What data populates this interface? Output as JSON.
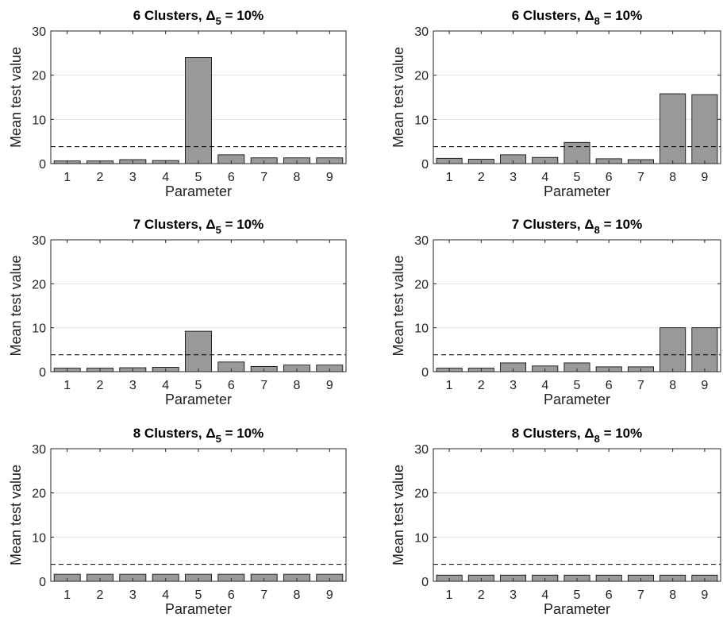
{
  "colors": {
    "bar_fill": "#999999",
    "bar_edge": "#000000",
    "threshold": "#000000",
    "grid": "#e3e3e3",
    "axis": "#262626"
  },
  "chart_data": [
    {
      "type": "bar",
      "title": "6 Clusters, Δ5 = 10%",
      "title_parts": {
        "main": "6 Clusters, Δ",
        "sub": "5",
        "tail": " = 10%"
      },
      "xlabel": "Parameter",
      "ylabel": "Mean test value",
      "categories": [
        "1",
        "2",
        "3",
        "4",
        "5",
        "6",
        "7",
        "8",
        "9"
      ],
      "values": [
        0.6,
        0.6,
        0.9,
        0.7,
        24.0,
        2.0,
        1.3,
        1.3,
        1.3
      ],
      "ylim": [
        0,
        30
      ],
      "yticks": [
        "0",
        "10",
        "20",
        "30"
      ],
      "threshold": 3.84,
      "grid": "horizontal"
    },
    {
      "type": "bar",
      "title": "6 Clusters, Δ8 = 10%",
      "title_parts": {
        "main": "6 Clusters, Δ",
        "sub": "8",
        "tail": " = 10%"
      },
      "xlabel": "Parameter",
      "ylabel": "Mean test value",
      "categories": [
        "1",
        "2",
        "3",
        "4",
        "5",
        "6",
        "7",
        "8",
        "9"
      ],
      "values": [
        1.2,
        1.0,
        2.0,
        1.4,
        4.8,
        1.1,
        0.9,
        15.8,
        15.6
      ],
      "ylim": [
        0,
        30
      ],
      "yticks": [
        "0",
        "10",
        "20",
        "30"
      ],
      "threshold": 3.84,
      "grid": "horizontal"
    },
    {
      "type": "bar",
      "title": "7 Clusters, Δ5 = 10%",
      "title_parts": {
        "main": "7 Clusters, Δ",
        "sub": "5",
        "tail": " = 10%"
      },
      "xlabel": "Parameter",
      "ylabel": "Mean test value",
      "categories": [
        "1",
        "2",
        "3",
        "4",
        "5",
        "6",
        "7",
        "8",
        "9"
      ],
      "values": [
        0.8,
        0.8,
        0.9,
        1.0,
        9.2,
        2.2,
        1.2,
        1.5,
        1.5
      ],
      "ylim": [
        0,
        30
      ],
      "yticks": [
        "0",
        "10",
        "20",
        "30"
      ],
      "threshold": 3.84,
      "grid": "horizontal"
    },
    {
      "type": "bar",
      "title": "7 Clusters, Δ8 = 10%",
      "title_parts": {
        "main": "7 Clusters, Δ",
        "sub": "8",
        "tail": " = 10%"
      },
      "xlabel": "Parameter",
      "ylabel": "Mean test value",
      "categories": [
        "1",
        "2",
        "3",
        "4",
        "5",
        "6",
        "7",
        "8",
        "9"
      ],
      "values": [
        0.8,
        0.8,
        2.0,
        1.3,
        2.0,
        1.1,
        1.1,
        10.0,
        10.0
      ],
      "ylim": [
        0,
        30
      ],
      "yticks": [
        "0",
        "10",
        "20",
        "30"
      ],
      "threshold": 3.84,
      "grid": "horizontal"
    },
    {
      "type": "bar",
      "title": "8 Clusters, Δ5 = 10%",
      "title_parts": {
        "main": "8 Clusters, Δ",
        "sub": "5",
        "tail": " = 10%"
      },
      "xlabel": "Parameter",
      "ylabel": "Mean test value",
      "categories": [
        "1",
        "2",
        "3",
        "4",
        "5",
        "6",
        "7",
        "8",
        "9"
      ],
      "values": [
        1.6,
        1.6,
        1.6,
        1.6,
        1.6,
        1.6,
        1.6,
        1.6,
        1.6
      ],
      "ylim": [
        0,
        30
      ],
      "yticks": [
        "0",
        "10",
        "20",
        "30"
      ],
      "threshold": 3.84,
      "grid": "horizontal"
    },
    {
      "type": "bar",
      "title": "8 Clusters, Δ8 = 10%",
      "title_parts": {
        "main": "8 Clusters, Δ",
        "sub": "8",
        "tail": " = 10%"
      },
      "xlabel": "Parameter",
      "ylabel": "Mean test value",
      "categories": [
        "1",
        "2",
        "3",
        "4",
        "5",
        "6",
        "7",
        "8",
        "9"
      ],
      "values": [
        1.4,
        1.4,
        1.4,
        1.4,
        1.4,
        1.4,
        1.4,
        1.4,
        1.4
      ],
      "ylim": [
        0,
        30
      ],
      "yticks": [
        "0",
        "10",
        "20",
        "30"
      ],
      "threshold": 3.84,
      "grid": "horizontal"
    }
  ]
}
